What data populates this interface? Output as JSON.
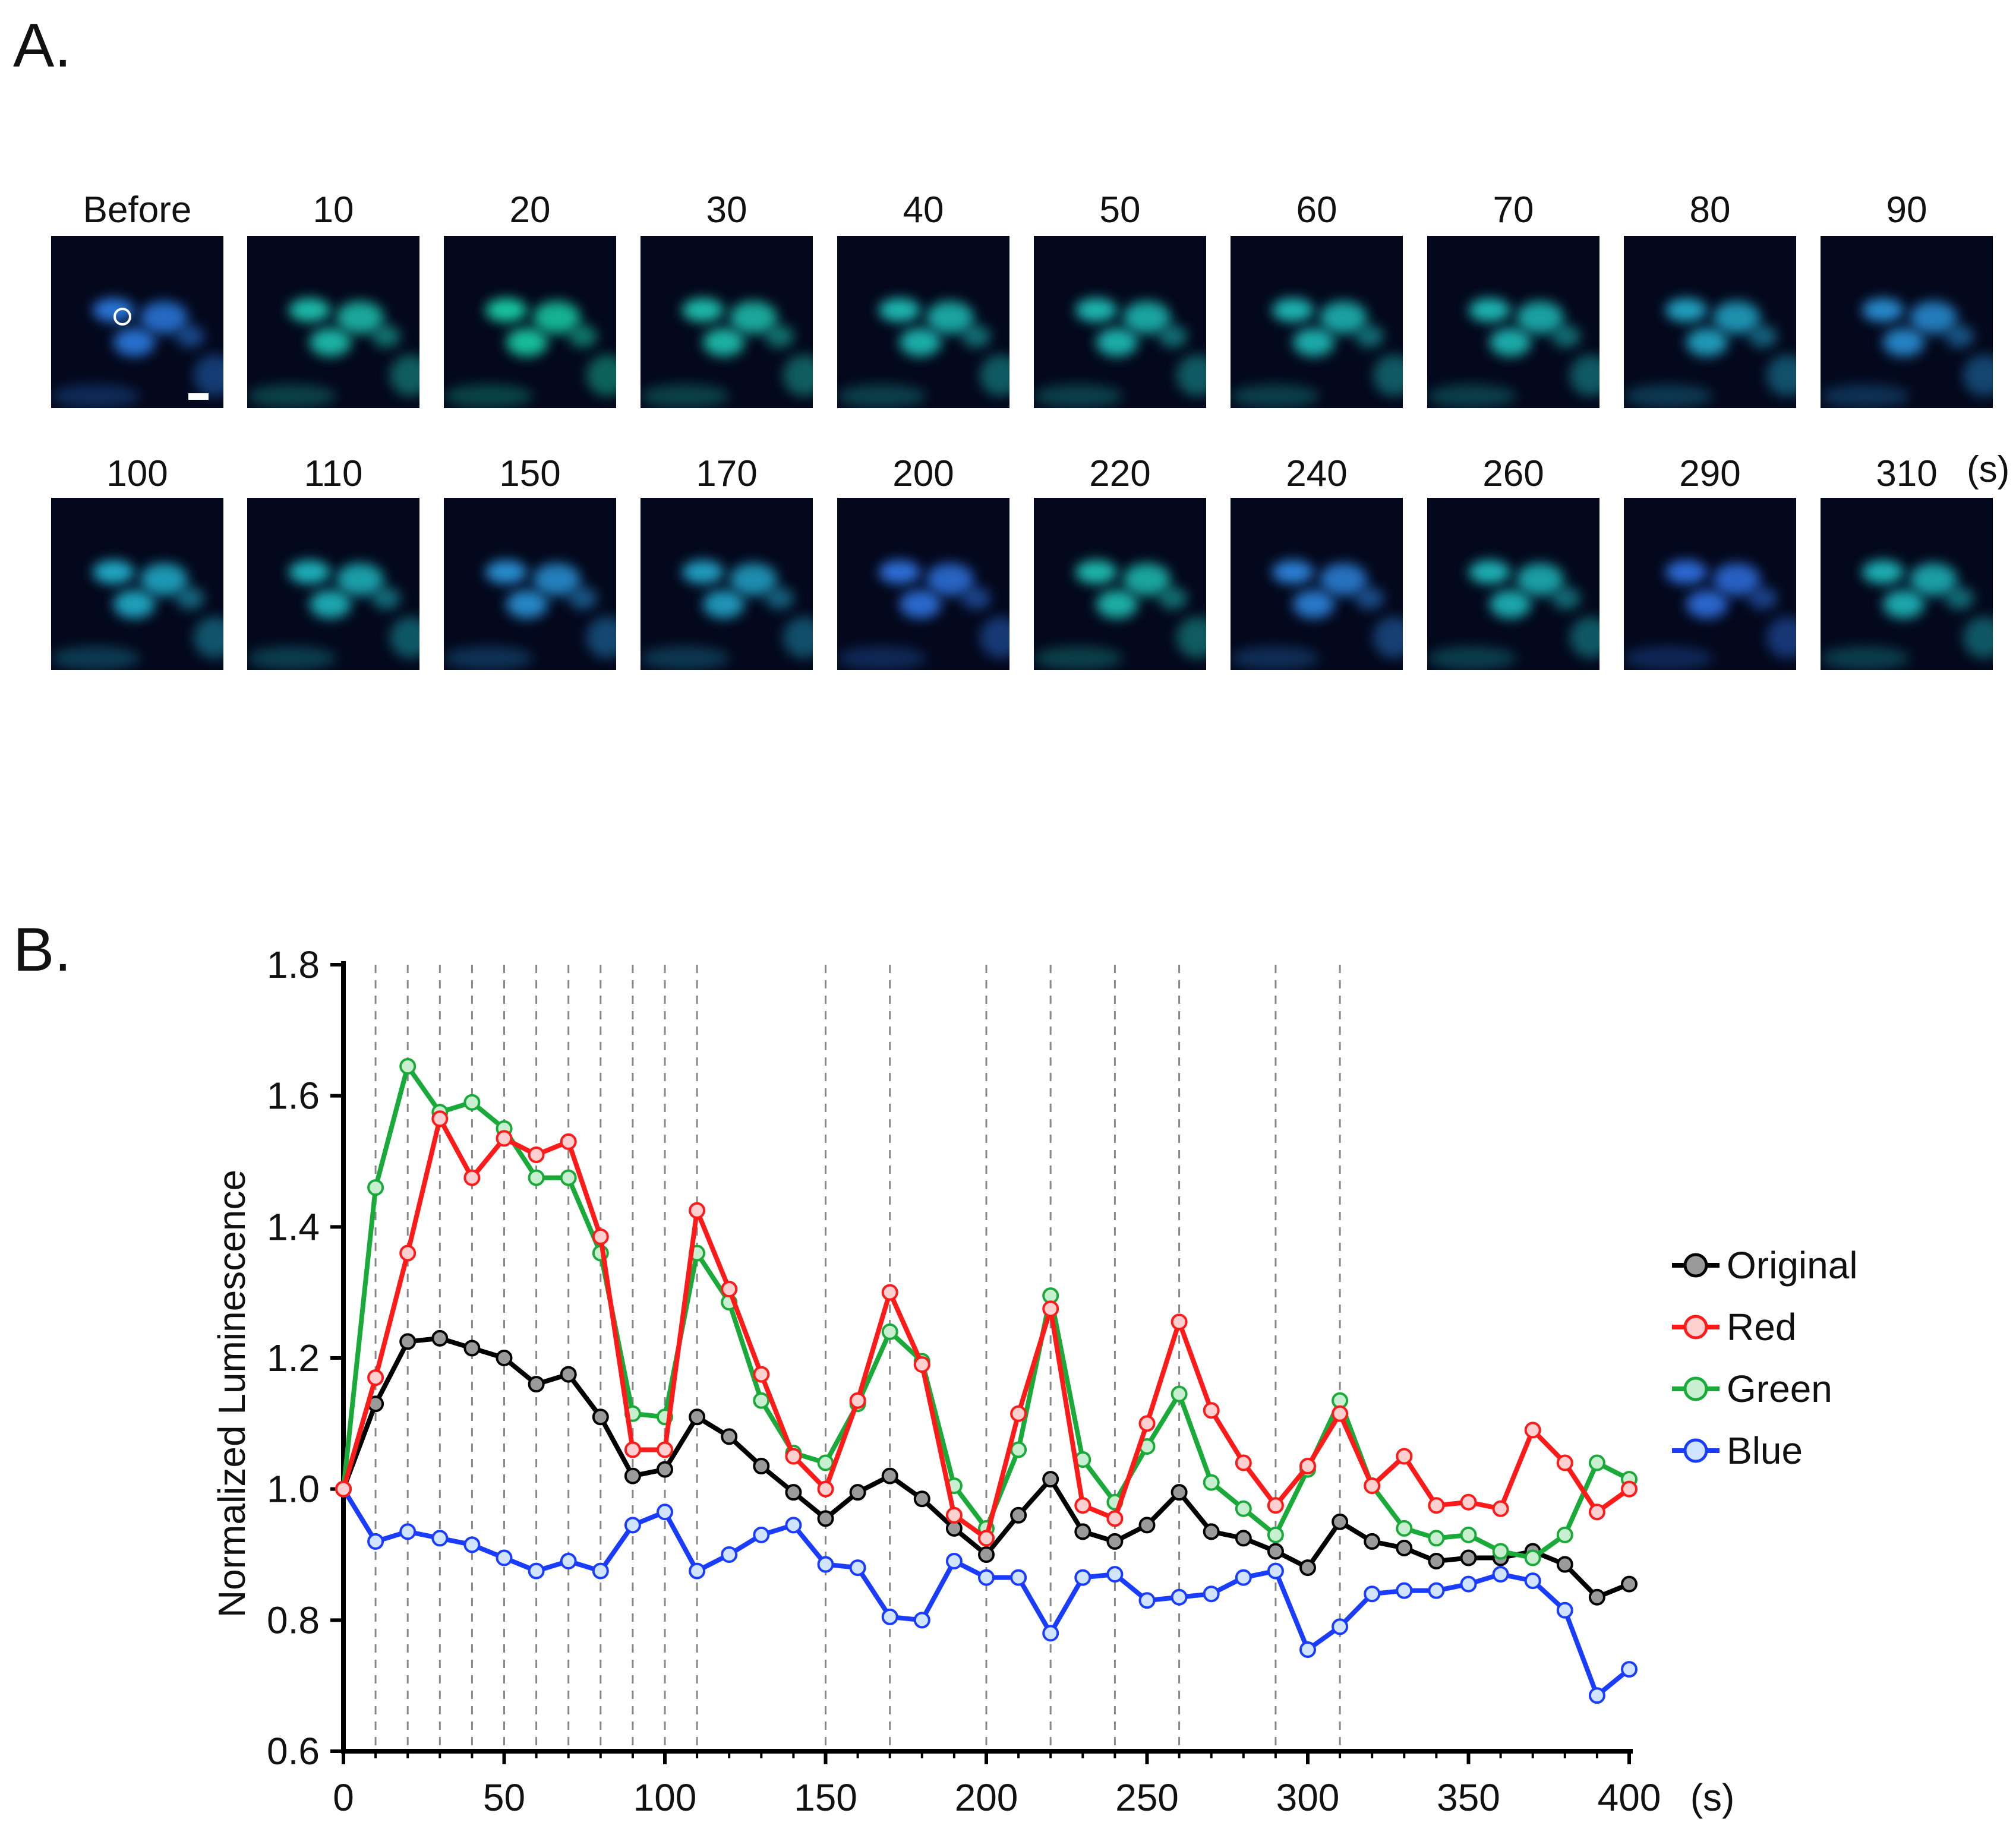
{
  "panel_a": {
    "label": "A.",
    "unit": "(s)",
    "frames": [
      {
        "label": "Before",
        "tint": "#2b7be0"
      },
      {
        "label": "10",
        "tint": "#1fc4b0"
      },
      {
        "label": "20",
        "tint": "#19d0a8"
      },
      {
        "label": "30",
        "tint": "#1fc4b0"
      },
      {
        "label": "40",
        "tint": "#1fbfb8"
      },
      {
        "label": "50",
        "tint": "#1fbfb8"
      },
      {
        "label": "60",
        "tint": "#1fbcb8"
      },
      {
        "label": "70",
        "tint": "#1fbcb8"
      },
      {
        "label": "80",
        "tint": "#23a8c8"
      },
      {
        "label": "90",
        "tint": "#2a90d6"
      },
      {
        "label": "100",
        "tint": "#22b0cc"
      },
      {
        "label": "110",
        "tint": "#1fb8c0"
      },
      {
        "label": "150",
        "tint": "#2a94d8"
      },
      {
        "label": "170",
        "tint": "#23a4c8"
      },
      {
        "label": "200",
        "tint": "#2f74e0"
      },
      {
        "label": "220",
        "tint": "#1fc0b4"
      },
      {
        "label": "240",
        "tint": "#2d84dc"
      },
      {
        "label": "260",
        "tint": "#1fb8bc"
      },
      {
        "label": "290",
        "tint": "#2f70e0"
      },
      {
        "label": "310",
        "tint": "#1fb8bc"
      }
    ]
  },
  "panel_b": {
    "label": "B."
  },
  "chart_data": {
    "type": "line",
    "title": "",
    "xlabel": "(s)",
    "ylabel": "Normalized Luminescence",
    "xlim": [
      0,
      400
    ],
    "ylim": [
      0.6,
      1.8
    ],
    "xticks": [
      "0",
      "50",
      "100",
      "150",
      "200",
      "250",
      "300",
      "350",
      "400"
    ],
    "yticks": [
      "0.6",
      "0.8",
      "1.0",
      "1.2",
      "1.4",
      "1.6",
      "1.8"
    ],
    "legend_position": "right",
    "dashed_markers_x": [
      10,
      20,
      30,
      40,
      50,
      60,
      70,
      80,
      90,
      100,
      110,
      150,
      170,
      200,
      220,
      240,
      260,
      290,
      310
    ],
    "x": [
      0,
      10,
      20,
      30,
      40,
      50,
      60,
      70,
      80,
      90,
      100,
      110,
      120,
      130,
      140,
      150,
      160,
      170,
      180,
      190,
      200,
      210,
      220,
      230,
      240,
      250,
      260,
      270,
      280,
      290,
      300,
      310,
      320,
      330,
      340,
      350,
      360,
      370,
      380,
      390,
      400
    ],
    "series": [
      {
        "name": "Original",
        "color": "#000000",
        "fill": "#9a9a9a",
        "values": [
          1.0,
          1.13,
          1.225,
          1.23,
          1.215,
          1.2,
          1.16,
          1.175,
          1.11,
          1.02,
          1.03,
          1.11,
          1.08,
          1.035,
          0.995,
          0.955,
          0.995,
          1.02,
          0.985,
          0.94,
          0.9,
          0.96,
          1.015,
          0.935,
          0.92,
          0.945,
          0.995,
          0.935,
          0.925,
          0.905,
          0.88,
          0.95,
          0.92,
          0.91,
          0.89,
          0.895,
          0.895,
          0.905,
          0.885,
          0.835,
          0.855
        ]
      },
      {
        "name": "Red",
        "color": "#ff1a1a",
        "fill": "#ffd0d0",
        "values": [
          1.0,
          1.17,
          1.36,
          1.565,
          1.475,
          1.535,
          1.51,
          1.53,
          1.385,
          1.06,
          1.06,
          1.425,
          1.305,
          1.175,
          1.05,
          1.0,
          1.135,
          1.3,
          1.19,
          0.96,
          0.925,
          1.115,
          1.275,
          0.975,
          0.955,
          1.1,
          1.255,
          1.12,
          1.04,
          0.975,
          1.035,
          1.115,
          1.005,
          1.05,
          0.975,
          0.98,
          0.97,
          1.09,
          1.04,
          0.965,
          1.0
        ]
      },
      {
        "name": "Green",
        "color": "#1aaa3a",
        "fill": "#c8f0d0",
        "values": [
          1.0,
          1.46,
          1.645,
          1.575,
          1.59,
          1.55,
          1.475,
          1.475,
          1.36,
          1.115,
          1.11,
          1.36,
          1.285,
          1.135,
          1.055,
          1.04,
          1.13,
          1.24,
          1.195,
          1.005,
          0.94,
          1.06,
          1.295,
          1.045,
          0.98,
          1.065,
          1.145,
          1.01,
          0.97,
          0.93,
          1.03,
          1.135,
          1.005,
          0.94,
          0.925,
          0.93,
          0.905,
          0.895,
          0.93,
          1.04,
          1.015
        ]
      },
      {
        "name": "Blue",
        "color": "#1a3cff",
        "fill": "#d0e4ff",
        "values": [
          1.0,
          0.92,
          0.935,
          0.925,
          0.915,
          0.895,
          0.875,
          0.89,
          0.875,
          0.945,
          0.965,
          0.875,
          0.9,
          0.93,
          0.945,
          0.885,
          0.88,
          0.805,
          0.8,
          0.89,
          0.865,
          0.865,
          0.78,
          0.865,
          0.87,
          0.83,
          0.835,
          0.84,
          0.865,
          0.875,
          0.755,
          0.79,
          0.84,
          0.845,
          0.845,
          0.855,
          0.87,
          0.86,
          0.815,
          0.685,
          0.725
        ]
      }
    ]
  }
}
